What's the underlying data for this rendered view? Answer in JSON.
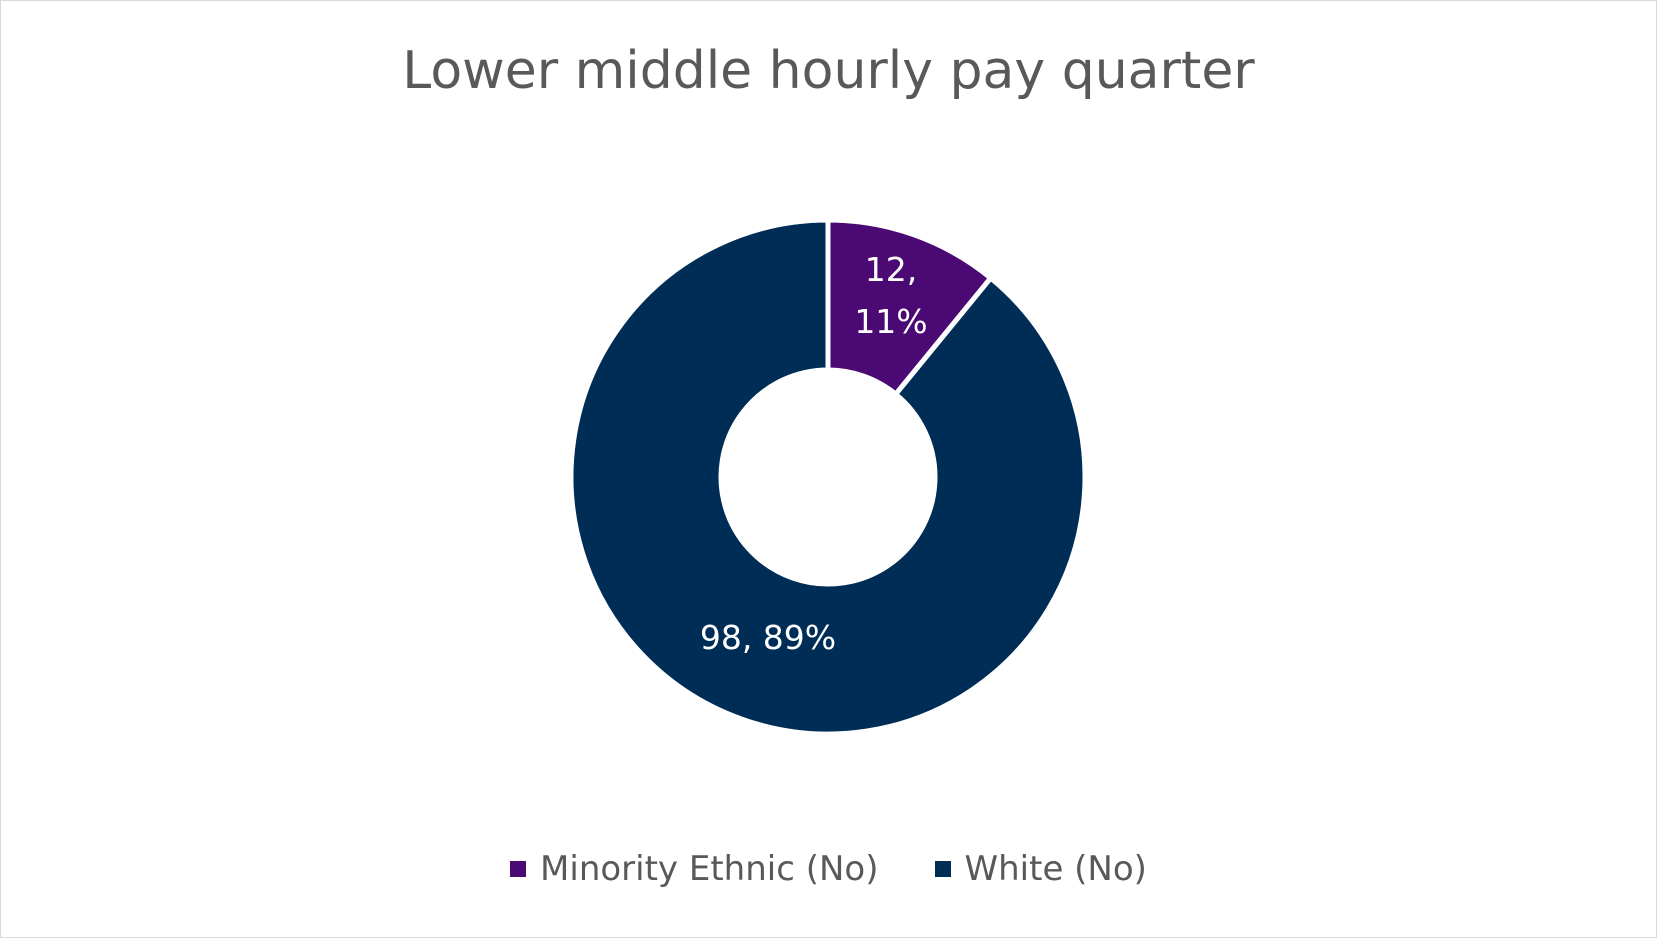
{
  "chart_data": {
    "type": "pie",
    "variant": "donut",
    "title": "Lower middle hourly pay quarter",
    "categories": [
      "Minority Ethnic (No)",
      "White (No)"
    ],
    "values": [
      12,
      98
    ],
    "percentages": [
      11,
      89
    ],
    "data_labels": [
      [
        "12,",
        "11%"
      ],
      [
        "98, 89%"
      ]
    ],
    "colors": [
      "#4B0A73",
      "#002D56"
    ],
    "legend_position": "bottom"
  },
  "legend": {
    "items": [
      {
        "label": "Minority Ethnic (No)",
        "color": "#4B0A73"
      },
      {
        "label": "White (No)",
        "color": "#002D56"
      }
    ]
  }
}
